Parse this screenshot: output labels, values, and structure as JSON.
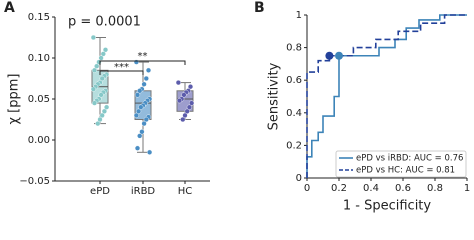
{
  "chart_data": [
    {
      "type": "box",
      "panel_label": "A",
      "ylabel": "χ [ppm]",
      "categories": [
        "ePD",
        "iRBD",
        "HC"
      ],
      "ylim": [
        -0.05,
        0.15
      ],
      "yticks": [
        {
          "value": -0.05,
          "label": "−0.05"
        },
        {
          "value": 0,
          "label": "0.00"
        },
        {
          "value": 0.05,
          "label": "0.05"
        },
        {
          "value": 0.1,
          "label": "0.10"
        },
        {
          "value": 0.15,
          "label": "0.15"
        }
      ],
      "annotations": [
        "p = 0.0001",
        "***",
        "**"
      ],
      "boxes": [
        {
          "color": "#86c8c8",
          "whislo": 0.02,
          "q1": 0.045,
          "median": 0.065,
          "q3": 0.085,
          "whishi": 0.125,
          "points": [
            0.125,
            0.11,
            0.105,
            0.1,
            0.095,
            0.09,
            0.085,
            0.08,
            0.078,
            0.075,
            0.07,
            0.068,
            0.065,
            0.062,
            0.06,
            0.058,
            0.055,
            0.05,
            0.048,
            0.045,
            0.04,
            0.035,
            0.03,
            0.025,
            0.02
          ]
        },
        {
          "color": "#4a8ec4",
          "whislo": -0.015,
          "q1": 0.025,
          "median": 0.045,
          "q3": 0.06,
          "whishi": 0.095,
          "points": [
            0.095,
            0.085,
            0.075,
            0.068,
            0.062,
            0.06,
            0.055,
            0.05,
            0.048,
            0.045,
            0.042,
            0.04,
            0.035,
            0.03,
            0.028,
            0.025,
            0.02,
            0.01,
            0.005,
            -0.01,
            -0.015
          ]
        },
        {
          "color": "#5c5cab",
          "whislo": 0.025,
          "q1": 0.035,
          "median": 0.05,
          "q3": 0.06,
          "whishi": 0.07,
          "points": [
            0.07,
            0.065,
            0.06,
            0.058,
            0.055,
            0.05,
            0.048,
            0.045,
            0.04,
            0.035,
            0.03,
            0.025
          ]
        }
      ]
    },
    {
      "type": "line",
      "panel_label": "B",
      "xlabel": "1 - Specificity",
      "ylabel": "Sensitivity",
      "xlim": [
        0,
        1
      ],
      "ylim": [
        0,
        1
      ],
      "xticks": [
        0,
        0.2,
        0.4,
        0.6,
        0.8,
        1
      ],
      "yticks": [
        0,
        0.2,
        0.4,
        0.6,
        0.8,
        1
      ],
      "legend": "lower right",
      "series": [
        {
          "name": "ePD vs iRBD: AUC = 0.76",
          "color": "#3d84b8",
          "dash": false,
          "x": [
            0,
            0,
            0.03,
            0.03,
            0.07,
            0.07,
            0.1,
            0.1,
            0.17,
            0.17,
            0.2,
            0.2,
            0.45,
            0.45,
            0.55,
            0.55,
            0.62,
            0.62,
            0.7,
            0.7,
            0.83,
            0.83,
            1
          ],
          "values": [
            0,
            0.13,
            0.13,
            0.23,
            0.23,
            0.28,
            0.28,
            0.38,
            0.38,
            0.5,
            0.5,
            0.75,
            0.75,
            0.8,
            0.8,
            0.85,
            0.85,
            0.92,
            0.92,
            0.97,
            0.97,
            1,
            1
          ],
          "marker": [
            0.2,
            0.75
          ]
        },
        {
          "name": "ePD vs HC: AUC = 0.81",
          "color": "#22409a",
          "dash": true,
          "x": [
            0,
            0,
            0.07,
            0.07,
            0.14,
            0.14,
            0.29,
            0.29,
            0.43,
            0.43,
            0.57,
            0.57,
            0.71,
            0.71,
            0.86,
            0.86,
            1
          ],
          "values": [
            0,
            0.65,
            0.65,
            0.72,
            0.72,
            0.75,
            0.75,
            0.8,
            0.8,
            0.85,
            0.85,
            0.9,
            0.9,
            0.95,
            0.95,
            1,
            1
          ],
          "marker": [
            0.14,
            0.75
          ]
        }
      ]
    }
  ]
}
